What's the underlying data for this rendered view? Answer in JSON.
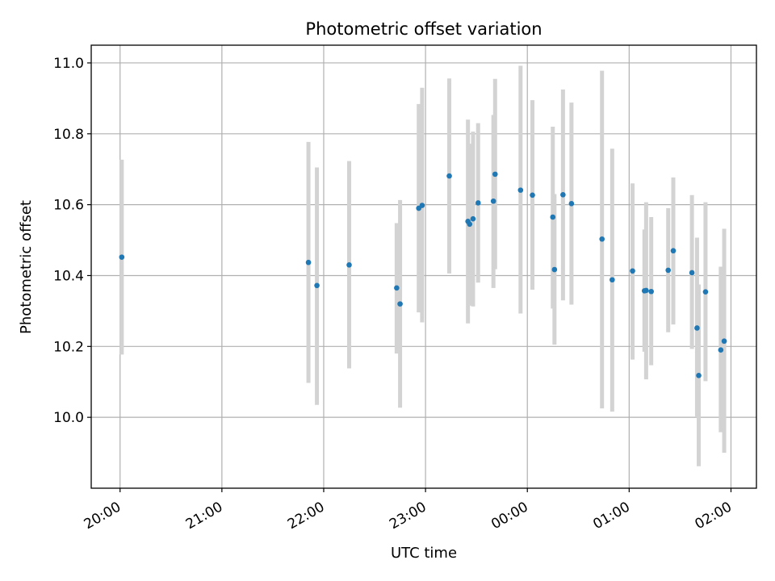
{
  "chart_data": {
    "type": "scatter",
    "title": "Photometric offset variation",
    "xlabel": "UTC time",
    "ylabel": "Photometric offset",
    "grid": true,
    "x_axis": {
      "kind": "time",
      "range": [
        "2000-01-01T19:43",
        "2000-01-02T02:15"
      ],
      "ticks": [
        "2000-01-01T20:00",
        "2000-01-01T21:00",
        "2000-01-01T22:00",
        "2000-01-01T23:00",
        "2000-01-02T00:00",
        "2000-01-02T01:00",
        "2000-01-02T02:00"
      ],
      "tick_labels": [
        "20:00",
        "21:00",
        "22:00",
        "23:00",
        "00:00",
        "01:00",
        "02:00"
      ]
    },
    "y_axis": {
      "range": [
        9.8,
        11.05
      ],
      "ticks": [
        10.0,
        10.2,
        10.4,
        10.6,
        10.8,
        11.0
      ],
      "tick_labels": [
        "10.0",
        "10.2",
        "10.4",
        "10.6",
        "10.8",
        "11.0"
      ]
    },
    "series": [
      {
        "marker_color": "#1f77b4",
        "errorbar_color": "#d3d3d3",
        "points": [
          {
            "x": "2000-01-01T20:01",
            "y": 10.452,
            "lo": 10.177,
            "hi": 10.727
          },
          {
            "x": "2000-01-01T21:51",
            "y": 10.437,
            "lo": 10.097,
            "hi": 10.777
          },
          {
            "x": "2000-01-01T21:56",
            "y": 10.372,
            "lo": 10.035,
            "hi": 10.705
          },
          {
            "x": "2000-01-01T22:15",
            "y": 10.43,
            "lo": 10.138,
            "hi": 10.723
          },
          {
            "x": "2000-01-01T22:43",
            "y": 10.365,
            "lo": 10.18,
            "hi": 10.548
          },
          {
            "x": "2000-01-01T22:45",
            "y": 10.32,
            "lo": 10.027,
            "hi": 10.613
          },
          {
            "x": "2000-01-01T22:56",
            "y": 10.59,
            "lo": 10.296,
            "hi": 10.884
          },
          {
            "x": "2000-01-01T22:58",
            "y": 10.598,
            "lo": 10.268,
            "hi": 10.93
          },
          {
            "x": "2000-01-01T23:14",
            "y": 10.681,
            "lo": 10.406,
            "hi": 10.956
          },
          {
            "x": "2000-01-01T23:25",
            "y": 10.553,
            "lo": 10.265,
            "hi": 10.84
          },
          {
            "x": "2000-01-01T23:26",
            "y": 10.545,
            "lo": 10.315,
            "hi": 10.772
          },
          {
            "x": "2000-01-01T23:28",
            "y": 10.56,
            "lo": 10.313,
            "hi": 10.806
          },
          {
            "x": "2000-01-01T23:31",
            "y": 10.605,
            "lo": 10.38,
            "hi": 10.83
          },
          {
            "x": "2000-01-01T23:40",
            "y": 10.61,
            "lo": 10.365,
            "hi": 10.853
          },
          {
            "x": "2000-01-01T23:41",
            "y": 10.686,
            "lo": 10.418,
            "hi": 10.955
          },
          {
            "x": "2000-01-01T23:56",
            "y": 10.641,
            "lo": 10.293,
            "hi": 10.992
          },
          {
            "x": "2000-01-02T00:03",
            "y": 10.627,
            "lo": 10.36,
            "hi": 10.895
          },
          {
            "x": "2000-01-02T00:15",
            "y": 10.565,
            "lo": 10.307,
            "hi": 10.82
          },
          {
            "x": "2000-01-02T00:16",
            "y": 10.417,
            "lo": 10.205,
            "hi": 10.63
          },
          {
            "x": "2000-01-02T00:21",
            "y": 10.628,
            "lo": 10.33,
            "hi": 10.925
          },
          {
            "x": "2000-01-02T00:26",
            "y": 10.603,
            "lo": 10.318,
            "hi": 10.888
          },
          {
            "x": "2000-01-02T00:44",
            "y": 10.503,
            "lo": 10.025,
            "hi": 10.978
          },
          {
            "x": "2000-01-02T00:50",
            "y": 10.388,
            "lo": 10.016,
            "hi": 10.758
          },
          {
            "x": "2000-01-02T01:02",
            "y": 10.413,
            "lo": 10.163,
            "hi": 10.66
          },
          {
            "x": "2000-01-02T01:09",
            "y": 10.357,
            "lo": 10.185,
            "hi": 10.53
          },
          {
            "x": "2000-01-02T01:10",
            "y": 10.358,
            "lo": 10.107,
            "hi": 10.607
          },
          {
            "x": "2000-01-02T01:13",
            "y": 10.355,
            "lo": 10.147,
            "hi": 10.565
          },
          {
            "x": "2000-01-02T01:23",
            "y": 10.415,
            "lo": 10.24,
            "hi": 10.59
          },
          {
            "x": "2000-01-02T01:26",
            "y": 10.47,
            "lo": 10.262,
            "hi": 10.677
          },
          {
            "x": "2000-01-02T01:37",
            "y": 10.408,
            "lo": 10.193,
            "hi": 10.627
          },
          {
            "x": "2000-01-02T01:40",
            "y": 10.252,
            "lo": 10.0,
            "hi": 10.507
          },
          {
            "x": "2000-01-02T01:41",
            "y": 10.118,
            "lo": 9.862,
            "hi": 10.375
          },
          {
            "x": "2000-01-02T01:45",
            "y": 10.354,
            "lo": 10.102,
            "hi": 10.607
          },
          {
            "x": "2000-01-02T01:54",
            "y": 10.19,
            "lo": 9.958,
            "hi": 10.425
          },
          {
            "x": "2000-01-02T01:56",
            "y": 10.215,
            "lo": 9.9,
            "hi": 10.532
          }
        ]
      }
    ]
  }
}
